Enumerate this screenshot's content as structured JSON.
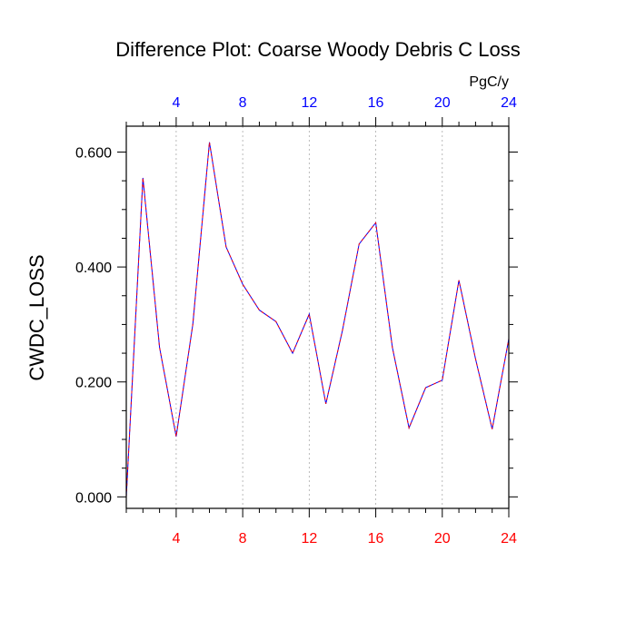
{
  "chart_data": {
    "type": "line",
    "title": "Difference Plot: Coarse Woody Debris C Loss",
    "ylabel": "CWDC_LOSS",
    "units": "PgC/y",
    "xlim": [
      1,
      24
    ],
    "ylim": [
      -0.02,
      0.645
    ],
    "x_ticks": [
      4,
      8,
      12,
      16,
      20,
      24
    ],
    "y_ticks": [
      0.0,
      0.2,
      0.4,
      0.6
    ],
    "y_tick_labels": [
      "0.000",
      "0.200",
      "0.400",
      "0.600"
    ],
    "x_tick_labels_bottom": [
      "4",
      "8",
      "12",
      "16",
      "20",
      "24"
    ],
    "x_tick_labels_top": [
      "4",
      "8",
      "12",
      "16",
      "20",
      "24"
    ],
    "series": [
      {
        "name": "difference",
        "x": [
          1,
          2,
          3,
          4,
          5,
          6,
          7,
          8,
          9,
          10,
          11,
          12,
          13,
          14,
          15,
          16,
          17,
          18,
          19,
          20,
          21,
          22,
          23,
          24
        ],
        "values": [
          0.0,
          0.555,
          0.26,
          0.105,
          0.3,
          0.617,
          0.435,
          0.37,
          0.325,
          0.305,
          0.25,
          0.318,
          0.162,
          0.29,
          0.44,
          0.477,
          0.26,
          0.12,
          0.19,
          0.203,
          0.377,
          0.24,
          0.118,
          0.275
        ]
      }
    ],
    "colors": {
      "line_a": "#0000ff",
      "line_b": "#ff0000",
      "bottom_tick_labels": "#ff0000",
      "top_tick_labels": "#0000ff",
      "grid": "#aaaaaa",
      "axis": "#000000"
    },
    "grid": "vertical dotted at major x ticks"
  }
}
